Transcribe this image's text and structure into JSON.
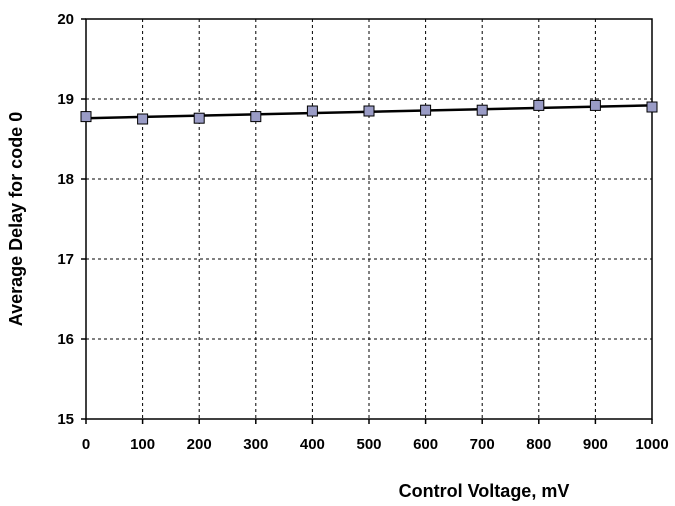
{
  "chart_data": {
    "type": "line",
    "title": "",
    "xlabel": "Control Voltage, mV",
    "ylabel": "Average Delay for code 0",
    "xlim": [
      0,
      1000
    ],
    "ylim": [
      15,
      20
    ],
    "xticks": [
      0,
      100,
      200,
      300,
      400,
      500,
      600,
      700,
      800,
      900,
      1000
    ],
    "yticks": [
      15,
      16,
      17,
      18,
      19,
      20
    ],
    "grid": true,
    "legend": "none",
    "series": [
      {
        "x": [
          0,
          100,
          200,
          300,
          400,
          500,
          600,
          700,
          800,
          900,
          1000
        ],
        "y": [
          18.78,
          18.75,
          18.76,
          18.78,
          18.85,
          18.85,
          18.86,
          18.86,
          18.92,
          18.92,
          18.9
        ],
        "marker": "square",
        "marker_color": "#9a9cc6"
      }
    ],
    "trendline": {
      "x": [
        0,
        1000
      ],
      "y": [
        18.76,
        18.92
      ],
      "color": "#000000"
    }
  }
}
